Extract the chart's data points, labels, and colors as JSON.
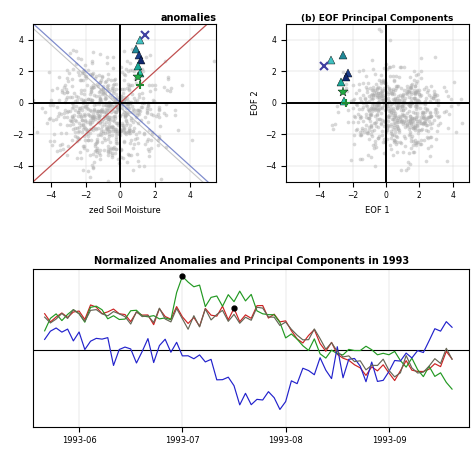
{
  "title_a": "anomalies",
  "title_b": "(b) EOF Principal Components",
  "title_c": "Normalized Anomalies and Principal Components in 1993",
  "xlabel_a": "zed Soil Moisture",
  "xlabel_b": "EOF 1",
  "ylabel_b": "EOF 2",
  "xlim_a": [
    -5,
    5.5
  ],
  "ylim_a": [
    -5,
    5
  ],
  "xlim_b": [
    -6,
    5
  ],
  "ylim_b": [
    -5,
    5
  ],
  "background_color": "#ffffff",
  "scatter_color": "#aaaaaa",
  "scatter_alpha": 0.45,
  "scatter_size": 7,
  "h_colors": [
    "#40c0c0",
    "#208898",
    "#1a3d8a",
    "#10286e",
    "#18a898",
    "#20c8a8"
  ],
  "hx_a": [
    1.1,
    0.9,
    1.05,
    1.2,
    1.0,
    1.1
  ],
  "hy_a": [
    4.0,
    3.4,
    3.0,
    2.7,
    2.3,
    1.9
  ],
  "hx_b": [
    -3.3,
    -2.6,
    -2.3,
    -2.4,
    -2.7,
    -2.5
  ],
  "hy_b": [
    2.7,
    3.0,
    1.9,
    1.6,
    1.3,
    0.1
  ],
  "cross_x_a": 1.4,
  "cross_y_a": 4.3,
  "cross_x_b": -3.7,
  "cross_y_b": 2.3,
  "star_x_a": 1.0,
  "star_y_a": 1.6,
  "star_x_b": -2.6,
  "star_y_b": 0.7,
  "plus_x_a": 1.1,
  "plus_y_a": 1.1,
  "plus_x_b": -2.4,
  "plus_y_b": 0.0,
  "xticks_a": [
    -4,
    -2,
    0,
    2,
    4
  ],
  "yticks_a": [
    -4,
    -2,
    0,
    2,
    4
  ],
  "xticks_b": [
    -4,
    -2,
    0,
    2,
    4
  ],
  "yticks_b": [
    -4,
    -2,
    0,
    2,
    4
  ],
  "time_labels": [
    "1993-06",
    "1993-07",
    "1993-08",
    "1993-09"
  ]
}
